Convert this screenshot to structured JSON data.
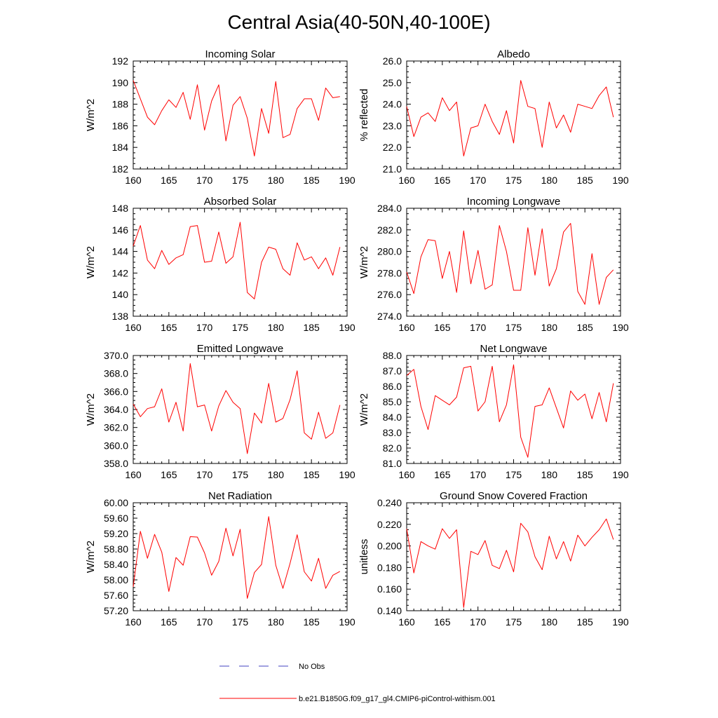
{
  "figure": {
    "title": "Central Asia(40-50N,40-100E)"
  },
  "legend": [
    {
      "label": "No Obs",
      "color": "#4040c0",
      "style": "dashed"
    },
    {
      "label": "b.e21.B1850G.f09_g17_gl4.CMIP6-piControl-withism.001",
      "color": "#ff0000",
      "style": "solid"
    }
  ],
  "chart_data": [
    {
      "type": "line",
      "title": "Incoming Solar",
      "ylabel": "W/m^2",
      "xlabel": "",
      "xlim": [
        160,
        190
      ],
      "ylim": [
        182,
        192
      ],
      "xticks": [
        "160",
        "165",
        "170",
        "175",
        "180",
        "185",
        "190"
      ],
      "yticks": [
        "182",
        "184",
        "186",
        "188",
        "190",
        "192"
      ],
      "x": [
        160,
        161,
        162,
        163,
        164,
        165,
        166,
        167,
        168,
        169,
        170,
        171,
        172,
        173,
        174,
        175,
        176,
        177,
        178,
        179,
        180,
        181,
        182,
        183,
        184,
        185,
        186,
        187,
        188,
        189
      ],
      "series": [
        {
          "name": "b.e21.B1850G.f09_g17_gl4.CMIP6-piControl-withism.001",
          "color": "#ff0000",
          "values": [
            190.2,
            188.5,
            186.8,
            186.1,
            187.4,
            188.4,
            187.7,
            189.1,
            186.6,
            189.8,
            185.6,
            188.3,
            189.8,
            184.6,
            187.9,
            188.7,
            186.7,
            183.2,
            187.6,
            185.3,
            190.1,
            184.9,
            185.2,
            187.6,
            188.5,
            188.5,
            186.5,
            189.5,
            188.6,
            188.7
          ]
        }
      ]
    },
    {
      "type": "line",
      "title": "Albedo",
      "ylabel": "% reflected",
      "xlabel": "",
      "xlim": [
        160,
        190
      ],
      "ylim": [
        21,
        26
      ],
      "xticks": [
        "160",
        "165",
        "170",
        "175",
        "180",
        "185",
        "190"
      ],
      "yticks": [
        "21.0",
        "22.0",
        "23.0",
        "24.0",
        "25.0",
        "26.0"
      ],
      "x": [
        160,
        161,
        162,
        163,
        164,
        165,
        166,
        167,
        168,
        169,
        170,
        171,
        172,
        173,
        174,
        175,
        176,
        177,
        178,
        179,
        180,
        181,
        182,
        183,
        184,
        185,
        186,
        187,
        188,
        189
      ],
      "series": [
        {
          "name": "b.e21.B1850G.f09_g17_gl4.CMIP6-piControl-withism.001",
          "color": "#ff0000",
          "values": [
            23.9,
            22.5,
            23.4,
            23.6,
            23.2,
            24.3,
            23.7,
            24.1,
            21.6,
            22.9,
            23.0,
            24.0,
            23.2,
            22.6,
            23.7,
            22.2,
            25.1,
            23.9,
            23.8,
            22.0,
            24.1,
            22.9,
            23.5,
            22.7,
            24.0,
            23.9,
            23.8,
            24.4,
            24.8,
            23.4
          ]
        }
      ]
    },
    {
      "type": "line",
      "title": "Absorbed Solar",
      "ylabel": "W/m^2",
      "xlabel": "",
      "xlim": [
        160,
        190
      ],
      "ylim": [
        138,
        148
      ],
      "xticks": [
        "160",
        "165",
        "170",
        "175",
        "180",
        "185",
        "190"
      ],
      "yticks": [
        "138",
        "140",
        "142",
        "144",
        "146",
        "148"
      ],
      "x": [
        160,
        161,
        162,
        163,
        164,
        165,
        166,
        167,
        168,
        169,
        170,
        171,
        172,
        173,
        174,
        175,
        176,
        177,
        178,
        179,
        180,
        181,
        182,
        183,
        184,
        185,
        186,
        187,
        188,
        189
      ],
      "series": [
        {
          "name": "b.e21.B1850G.f09_g17_gl4.CMIP6-piControl-withism.001",
          "color": "#ff0000",
          "values": [
            144.5,
            146.4,
            143.2,
            142.4,
            144.1,
            142.8,
            143.4,
            143.7,
            146.3,
            146.4,
            143.0,
            143.1,
            145.8,
            142.9,
            143.5,
            146.7,
            140.2,
            139.6,
            143.0,
            144.4,
            144.2,
            142.4,
            141.8,
            144.8,
            143.2,
            143.5,
            142.4,
            143.4,
            141.8,
            144.4
          ]
        }
      ]
    },
    {
      "type": "line",
      "title": "Incoming Longwave",
      "ylabel": "W/m^2",
      "xlabel": "",
      "xlim": [
        160,
        190
      ],
      "ylim": [
        274,
        284
      ],
      "xticks": [
        "160",
        "165",
        "170",
        "175",
        "180",
        "185",
        "190"
      ],
      "yticks": [
        "274.0",
        "276.0",
        "278.0",
        "280.0",
        "282.0",
        "284.0"
      ],
      "x": [
        160,
        161,
        162,
        163,
        164,
        165,
        166,
        167,
        168,
        169,
        170,
        171,
        172,
        173,
        174,
        175,
        176,
        177,
        178,
        179,
        180,
        181,
        182,
        183,
        184,
        185,
        186,
        187,
        188,
        189
      ],
      "series": [
        {
          "name": "b.e21.B1850G.f09_g17_gl4.CMIP6-piControl-withism.001",
          "color": "#ff0000",
          "values": [
            278.1,
            276.1,
            279.5,
            281.1,
            281.0,
            277.5,
            280.0,
            276.2,
            281.9,
            277.0,
            280.1,
            276.5,
            276.9,
            282.4,
            280.0,
            276.4,
            276.4,
            282.2,
            277.8,
            282.1,
            276.8,
            278.4,
            281.8,
            282.6,
            276.3,
            275.1,
            279.8,
            275.1,
            277.6,
            278.3
          ]
        }
      ]
    },
    {
      "type": "line",
      "title": "Emitted Longwave",
      "ylabel": "W/m^2",
      "xlabel": "",
      "xlim": [
        160,
        190
      ],
      "ylim": [
        358,
        370
      ],
      "xticks": [
        "160",
        "165",
        "170",
        "175",
        "180",
        "185",
        "190"
      ],
      "yticks": [
        "358.0",
        "360.0",
        "362.0",
        "364.0",
        "366.0",
        "368.0",
        "370.0"
      ],
      "x": [
        160,
        161,
        162,
        163,
        164,
        165,
        166,
        167,
        168,
        169,
        170,
        171,
        172,
        173,
        174,
        175,
        176,
        177,
        178,
        179,
        180,
        181,
        182,
        183,
        184,
        185,
        186,
        187,
        188,
        189
      ],
      "series": [
        {
          "name": "b.e21.B1850G.f09_g17_gl4.CMIP6-piControl-withism.001",
          "color": "#ff0000",
          "values": [
            364.6,
            363.2,
            364.1,
            364.3,
            366.3,
            362.6,
            364.8,
            361.6,
            369.1,
            364.3,
            364.5,
            361.6,
            364.4,
            366.1,
            364.8,
            364.1,
            359.1,
            363.6,
            362.5,
            366.9,
            362.6,
            363.0,
            365.1,
            368.3,
            361.4,
            360.7,
            363.7,
            360.8,
            361.4,
            364.5
          ]
        }
      ]
    },
    {
      "type": "line",
      "title": "Net Longwave",
      "ylabel": "W/m^2",
      "xlabel": "",
      "xlim": [
        160,
        190
      ],
      "ylim": [
        81,
        88
      ],
      "xticks": [
        "160",
        "165",
        "170",
        "175",
        "180",
        "185",
        "190"
      ],
      "yticks": [
        "81.0",
        "82.0",
        "83.0",
        "84.0",
        "85.0",
        "86.0",
        "87.0",
        "88.0"
      ],
      "x": [
        160,
        161,
        162,
        163,
        164,
        165,
        166,
        167,
        168,
        169,
        170,
        171,
        172,
        173,
        174,
        175,
        176,
        177,
        178,
        179,
        180,
        181,
        182,
        183,
        184,
        185,
        186,
        187,
        188,
        189
      ],
      "series": [
        {
          "name": "b.e21.B1850G.f09_g17_gl4.CMIP6-piControl-withism.001",
          "color": "#ff0000",
          "values": [
            86.7,
            87.1,
            84.7,
            83.2,
            85.4,
            85.1,
            84.8,
            85.3,
            87.2,
            87.3,
            84.4,
            85.0,
            87.3,
            83.7,
            84.8,
            87.4,
            82.7,
            81.4,
            84.7,
            84.8,
            85.9,
            84.6,
            83.3,
            85.7,
            85.1,
            85.5,
            83.9,
            85.6,
            83.7,
            86.2
          ]
        }
      ]
    },
    {
      "type": "line",
      "title": "Net Radiation",
      "ylabel": "W/m^2",
      "xlabel": "",
      "xlim": [
        160,
        190
      ],
      "ylim": [
        57.2,
        60.0
      ],
      "xticks": [
        "160",
        "165",
        "170",
        "175",
        "180",
        "185",
        "190"
      ],
      "yticks": [
        "57.20",
        "57.60",
        "58.00",
        "58.40",
        "58.80",
        "59.20",
        "59.60",
        "60.00"
      ],
      "x": [
        160,
        161,
        162,
        163,
        164,
        165,
        166,
        167,
        168,
        169,
        170,
        171,
        172,
        173,
        174,
        175,
        176,
        177,
        178,
        179,
        180,
        181,
        182,
        183,
        184,
        185,
        186,
        187,
        188,
        189
      ],
      "series": [
        {
          "name": "b.e21.B1850G.f09_g17_gl4.CMIP6-piControl-withism.001",
          "color": "#ff0000",
          "values": [
            57.82,
            59.26,
            58.56,
            59.18,
            58.72,
            57.7,
            58.58,
            58.38,
            59.12,
            59.11,
            58.7,
            58.12,
            58.48,
            59.34,
            58.62,
            59.31,
            57.52,
            58.19,
            58.4,
            59.64,
            58.38,
            57.78,
            58.43,
            59.17,
            58.21,
            57.97,
            58.56,
            57.78,
            58.12,
            58.22
          ]
        }
      ]
    },
    {
      "type": "line",
      "title": "Ground Snow Covered Fraction",
      "ylabel": "unitless",
      "xlabel": "",
      "xlim": [
        160,
        190
      ],
      "ylim": [
        0.14,
        0.24
      ],
      "xticks": [
        "160",
        "165",
        "170",
        "175",
        "180",
        "185",
        "190"
      ],
      "yticks": [
        "0.140",
        "0.160",
        "0.180",
        "0.200",
        "0.220",
        "0.240"
      ],
      "x": [
        160,
        161,
        162,
        163,
        164,
        165,
        166,
        167,
        168,
        169,
        170,
        171,
        172,
        173,
        174,
        175,
        176,
        177,
        178,
        179,
        180,
        181,
        182,
        183,
        184,
        185,
        186,
        187,
        188,
        189
      ],
      "series": [
        {
          "name": "b.e21.B1850G.f09_g17_gl4.CMIP6-piControl-withism.001",
          "color": "#ff0000",
          "values": [
            0.216,
            0.175,
            0.204,
            0.2,
            0.197,
            0.216,
            0.207,
            0.215,
            0.143,
            0.195,
            0.192,
            0.205,
            0.182,
            0.179,
            0.196,
            0.176,
            0.221,
            0.213,
            0.19,
            0.178,
            0.209,
            0.188,
            0.204,
            0.186,
            0.21,
            0.2,
            0.208,
            0.215,
            0.225,
            0.206
          ]
        }
      ]
    }
  ]
}
